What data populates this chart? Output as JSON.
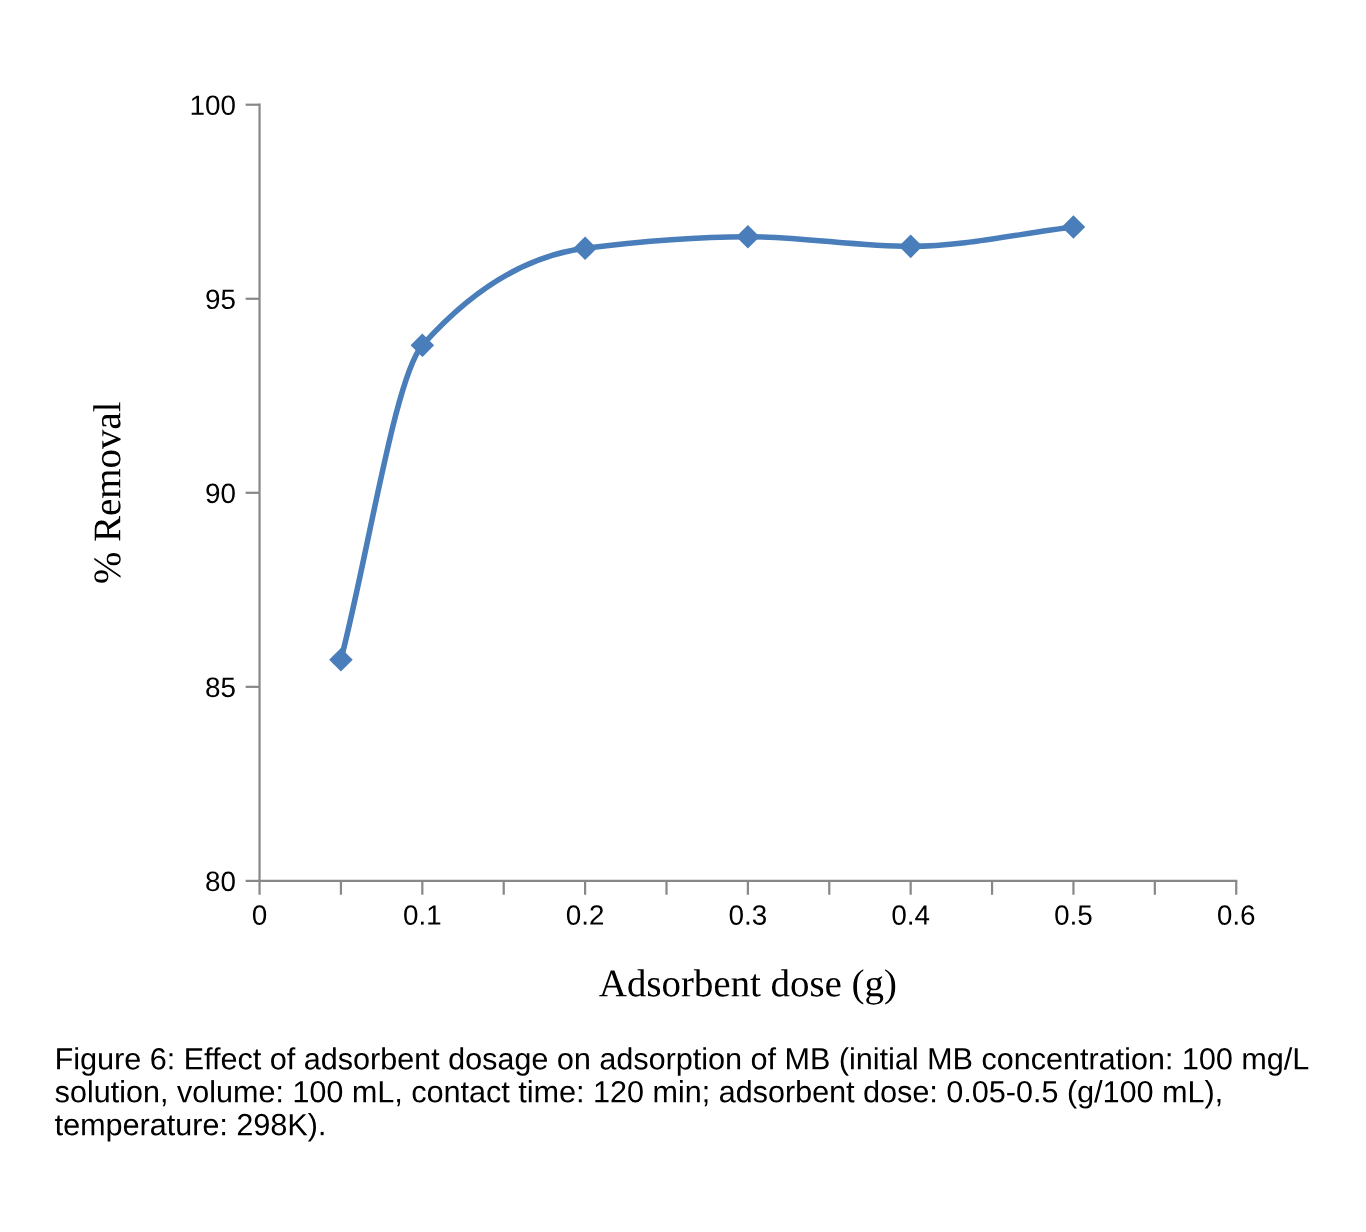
{
  "chart_data": {
    "type": "line",
    "xlabel": "Adsorbent dose (g)",
    "ylabel": "% Removal",
    "x": [
      0.05,
      0.1,
      0.2,
      0.3,
      0.4,
      0.5
    ],
    "series": [
      {
        "color": "#4a7ebb",
        "values": [
          85.7,
          93.8,
          96.3,
          96.6,
          96.35,
          96.85
        ]
      }
    ],
    "marker": "diamond",
    "line_style": "solid",
    "grid": false,
    "legend": false,
    "xlim": [
      0,
      0.6
    ],
    "ylim": [
      80,
      100
    ],
    "xticks": [
      0,
      {
        "value": 0.05,
        "label": null
      },
      0.1,
      {
        "value": 0.15,
        "label": null
      },
      0.2,
      {
        "value": 0.25,
        "label": null
      },
      0.3,
      {
        "value": 0.35,
        "label": null
      },
      0.4,
      {
        "value": 0.45,
        "label": null
      },
      0.5,
      {
        "value": 0.55,
        "label": null
      },
      0.6
    ],
    "yticks": [
      80,
      85,
      90,
      95,
      100
    ],
    "annotations": [
      "Figure 6: Effect of adsorbent dosage on adsorption of MB (initial MB concentration: 100 mg/L solution, volume: 100 mL, contact time: 120 min; adsorbent dose: 0.05-0.5 (g/100 mL), temperature: 298K)."
    ]
  }
}
